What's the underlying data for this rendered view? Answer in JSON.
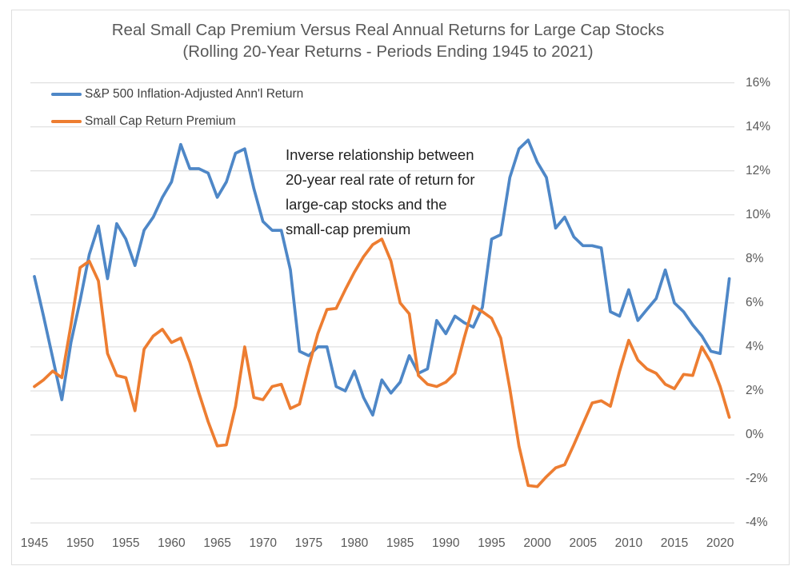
{
  "title": {
    "line1": "Real Small Cap Premium Versus Real Annual Returns for Large Cap Stocks",
    "line2": "(Rolling 20-Year Returns - Periods Ending 1945 to 2021)"
  },
  "annotation": {
    "lines": [
      "Inverse relationship between",
      "20-year real rate of return for",
      "large-cap stocks and the",
      "small-cap premium"
    ]
  },
  "colors": {
    "sp500_blue": "#4E87C7",
    "premium_orange": "#ED7D31",
    "gridline": "#D9D9D9",
    "axis_text": "#595959",
    "title_text": "#595959",
    "annotation_text": "#222222",
    "frame_border": "#DEDEDE"
  },
  "chart_data": {
    "type": "line",
    "title": "Real Small Cap Premium Versus Real Annual Returns for Large Cap Stocks (Rolling 20-Year Returns - Periods Ending 1945 to 2021)",
    "xlabel": "",
    "ylabel": "",
    "x": [
      1945,
      1946,
      1947,
      1948,
      1949,
      1950,
      1951,
      1952,
      1953,
      1954,
      1955,
      1956,
      1957,
      1958,
      1959,
      1960,
      1961,
      1962,
      1963,
      1964,
      1965,
      1966,
      1967,
      1968,
      1969,
      1970,
      1971,
      1972,
      1973,
      1974,
      1975,
      1976,
      1977,
      1978,
      1979,
      1980,
      1981,
      1982,
      1983,
      1984,
      1985,
      1986,
      1987,
      1988,
      1989,
      1990,
      1991,
      1992,
      1993,
      1994,
      1995,
      1996,
      1997,
      1998,
      1999,
      2000,
      2001,
      2002,
      2003,
      2004,
      2005,
      2006,
      2007,
      2008,
      2009,
      2010,
      2011,
      2012,
      2013,
      2014,
      2015,
      2016,
      2017,
      2018,
      2019,
      2020,
      2021
    ],
    "series": [
      {
        "name": "S&P 500 Inflation-Adjusted Ann'l Return",
        "color": "#4E87C7",
        "values": [
          7.2,
          5.4,
          3.5,
          1.6,
          4.2,
          6.1,
          8.2,
          9.5,
          7.1,
          9.6,
          8.9,
          7.7,
          9.3,
          9.9,
          10.8,
          11.5,
          13.2,
          12.1,
          12.1,
          11.9,
          10.8,
          11.5,
          12.8,
          13.0,
          11.2,
          9.7,
          9.3,
          9.3,
          7.5,
          3.8,
          3.6,
          4.0,
          4.0,
          2.2,
          2.0,
          2.9,
          1.7,
          0.9,
          2.5,
          1.9,
          2.4,
          3.6,
          2.8,
          3.0,
          5.2,
          4.6,
          5.4,
          5.1,
          4.9,
          5.8,
          8.9,
          9.1,
          11.7,
          13.0,
          13.4,
          12.4,
          11.7,
          9.4,
          9.9,
          9.0,
          8.6,
          8.6,
          8.5,
          5.6,
          5.4,
          6.6,
          5.2,
          5.7,
          6.2,
          7.5,
          6.0,
          5.6,
          5.0,
          4.5,
          3.8,
          3.7,
          7.1
        ]
      },
      {
        "name": "Small Cap Return Premium",
        "color": "#ED7D31",
        "values": [
          2.2,
          2.5,
          2.9,
          2.6,
          5.0,
          7.6,
          7.9,
          7.0,
          3.7,
          2.7,
          2.6,
          1.1,
          3.9,
          4.5,
          4.8,
          4.2,
          4.4,
          3.3,
          1.9,
          0.6,
          -0.5,
          -0.45,
          1.3,
          4.0,
          1.7,
          1.6,
          2.2,
          2.3,
          1.2,
          1.4,
          3.1,
          4.6,
          5.7,
          5.75,
          6.6,
          7.4,
          8.1,
          8.65,
          8.9,
          7.9,
          6.0,
          5.5,
          2.7,
          2.3,
          2.2,
          2.4,
          2.8,
          4.4,
          5.85,
          5.6,
          5.3,
          4.4,
          2.1,
          -0.5,
          -2.3,
          -2.35,
          -1.9,
          -1.5,
          -1.35,
          -0.45,
          0.5,
          1.45,
          1.55,
          1.3,
          2.9,
          4.3,
          3.4,
          3.0,
          2.8,
          2.3,
          2.1,
          2.75,
          2.7,
          4.0,
          3.3,
          2.2,
          0.8
        ]
      }
    ],
    "y_axis": {
      "min": -4,
      "max": 16,
      "step": 2,
      "suffix": "%",
      "side": "right"
    },
    "y_tick_labels": [
      "16%",
      "14%",
      "12%",
      "10%",
      "8%",
      "6%",
      "4%",
      "2%",
      "0%",
      "-2%",
      "-4%"
    ],
    "x_tick_labels": [
      "1945",
      "1950",
      "1955",
      "1960",
      "1965",
      "1970",
      "1975",
      "1980",
      "1985",
      "1990",
      "1995",
      "2000",
      "2005",
      "2010",
      "2015",
      "2020"
    ],
    "grid": "horizontal",
    "legend_position": "top-left"
  }
}
